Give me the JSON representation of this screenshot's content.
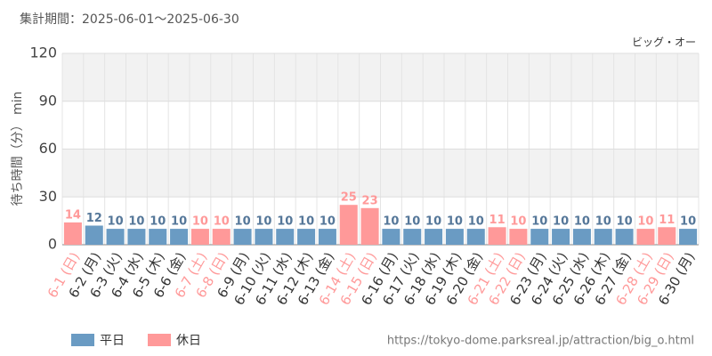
{
  "chart_data": {
    "type": "bar",
    "title": "集計期間：2025-06-01～2025-06-30",
    "subtitle": "ビッグ・オー",
    "y_label": "待ち時間（分） min",
    "source": "https://tokyo-dome.parksreal.jp/attraction/big_o.html",
    "categories": [
      "6-1 (日)",
      "6-2 (月)",
      "6-3 (火)",
      "6-4 (水)",
      "6-5 (木)",
      "6-6 (金)",
      "6-7 (土)",
      "6-8 (日)",
      "6-9 (月)",
      "6-10 (火)",
      "6-11 (水)",
      "6-12 (木)",
      "6-13 (金)",
      "6-14 (土)",
      "6-15 (日)",
      "6-16 (月)",
      "6-17 (火)",
      "6-18 (水)",
      "6-19 (木)",
      "6-20 (金)",
      "6-21 (土)",
      "6-22 (日)",
      "6-23 (月)",
      "6-24 (火)",
      "6-25 (水)",
      "6-26 (木)",
      "6-27 (金)",
      "6-28 (土)",
      "6-29 (日)",
      "6-30 (月)"
    ],
    "series": [
      {
        "name": "平日",
        "color": "#6a9bc3",
        "values": [
          null,
          12,
          10,
          10,
          10,
          10,
          null,
          null,
          10,
          10,
          10,
          10,
          10,
          null,
          null,
          10,
          10,
          10,
          10,
          10,
          null,
          null,
          10,
          10,
          10,
          10,
          10,
          null,
          null,
          10
        ]
      },
      {
        "name": "休日",
        "color": "#ff9999",
        "values": [
          14,
          null,
          null,
          null,
          null,
          null,
          10,
          10,
          null,
          null,
          null,
          null,
          null,
          25,
          23,
          null,
          null,
          null,
          null,
          null,
          11,
          10,
          null,
          null,
          null,
          null,
          null,
          10,
          11,
          null
        ]
      }
    ],
    "ylim": [
      0,
      120
    ],
    "yticks": [
      0,
      30,
      60,
      90,
      120
    ],
    "grid": true
  }
}
